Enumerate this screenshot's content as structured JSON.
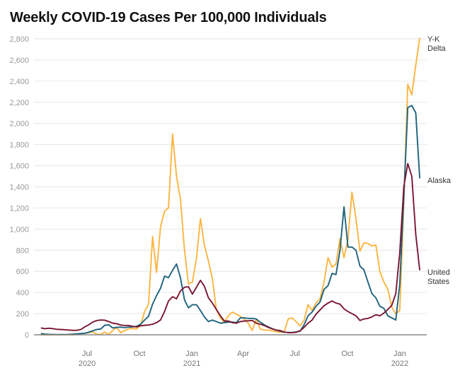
{
  "chart_data": {
    "type": "line",
    "title": "Weekly COVID-19 Cases Per 100,000 Individuals",
    "xlabel": "",
    "ylabel": "",
    "ylim": [
      0,
      2800
    ],
    "yticks": [
      0,
      200,
      400,
      600,
      800,
      1000,
      1200,
      1400,
      1600,
      1800,
      2000,
      2200,
      2400,
      2600,
      2800
    ],
    "ytick_labels": [
      "0",
      "200",
      "400",
      "600",
      "800",
      "1,000",
      "1,200",
      "1,400",
      "1,600",
      "1,800",
      "2,000",
      "2,200",
      "2,400",
      "2,600",
      "2,800"
    ],
    "xticks": [
      {
        "date": "2020-07-01",
        "label": "Jul",
        "year": "2020"
      },
      {
        "date": "2020-10-01",
        "label": "Oct",
        "year": ""
      },
      {
        "date": "2021-01-01",
        "label": "Jan",
        "year": "2021"
      },
      {
        "date": "2021-04-01",
        "label": "Apr",
        "year": ""
      },
      {
        "date": "2021-07-01",
        "label": "Jul",
        "year": ""
      },
      {
        "date": "2021-10-01",
        "label": "Oct",
        "year": ""
      },
      {
        "date": "2022-01-01",
        "label": "Jan",
        "year": "2022"
      }
    ],
    "grid": true,
    "legend": "direct labels at right end of lines",
    "x": [
      "2020-04-11",
      "2020-04-18",
      "2020-04-25",
      "2020-05-02",
      "2020-05-09",
      "2020-05-16",
      "2020-05-23",
      "2020-05-30",
      "2020-06-06",
      "2020-06-13",
      "2020-06-20",
      "2020-06-27",
      "2020-07-04",
      "2020-07-11",
      "2020-07-18",
      "2020-07-25",
      "2020-08-01",
      "2020-08-08",
      "2020-08-15",
      "2020-08-22",
      "2020-08-29",
      "2020-09-05",
      "2020-09-12",
      "2020-09-19",
      "2020-09-26",
      "2020-10-03",
      "2020-10-10",
      "2020-10-17",
      "2020-10-24",
      "2020-10-31",
      "2020-11-07",
      "2020-11-14",
      "2020-11-21",
      "2020-11-28",
      "2020-12-05",
      "2020-12-12",
      "2020-12-19",
      "2020-12-26",
      "2021-01-02",
      "2021-01-09",
      "2021-01-16",
      "2021-01-23",
      "2021-01-30",
      "2021-02-06",
      "2021-02-13",
      "2021-02-20",
      "2021-02-27",
      "2021-03-06",
      "2021-03-13",
      "2021-03-20",
      "2021-03-27",
      "2021-04-03",
      "2021-04-10",
      "2021-04-17",
      "2021-04-24",
      "2021-05-01",
      "2021-05-08",
      "2021-05-15",
      "2021-05-22",
      "2021-05-29",
      "2021-06-05",
      "2021-06-12",
      "2021-06-19",
      "2021-06-26",
      "2021-07-03",
      "2021-07-10",
      "2021-07-17",
      "2021-07-24",
      "2021-07-31",
      "2021-08-07",
      "2021-08-14",
      "2021-08-21",
      "2021-08-28",
      "2021-09-04",
      "2021-09-11",
      "2021-09-18",
      "2021-09-25",
      "2021-10-02",
      "2021-10-09",
      "2021-10-16",
      "2021-10-23",
      "2021-10-30",
      "2021-11-06",
      "2021-11-13",
      "2021-11-20",
      "2021-11-27",
      "2021-12-04",
      "2021-12-11",
      "2021-12-18",
      "2021-12-25",
      "2022-01-01",
      "2022-01-08",
      "2022-01-15",
      "2022-01-22",
      "2022-01-29",
      "2022-02-05"
    ],
    "series": [
      {
        "name": "Y-K Delta",
        "label_lines": [
          "Y-K",
          "Delta"
        ],
        "color": "#FDB441",
        "values": [
          0,
          0,
          0,
          0,
          0,
          0,
          0,
          0,
          0,
          5,
          10,
          15,
          20,
          28,
          5,
          5,
          25,
          5,
          40,
          70,
          20,
          40,
          55,
          60,
          55,
          90,
          220,
          290,
          930,
          590,
          1020,
          1170,
          1200,
          1900,
          1500,
          1280,
          800,
          480,
          500,
          720,
          1100,
          850,
          700,
          530,
          240,
          160,
          120,
          180,
          215,
          195,
          175,
          150,
          110,
          40,
          150,
          55,
          45,
          45,
          38,
          30,
          25,
          25,
          150,
          160,
          125,
          85,
          140,
          285,
          230,
          300,
          340,
          500,
          730,
          640,
          670,
          910,
          730,
          900,
          1350,
          1100,
          790,
          870,
          865,
          840,
          850,
          600,
          500,
          430,
          260,
          200,
          230,
          1250,
          2370,
          2270,
          2550,
          2810
        ]
      },
      {
        "name": "Alaska",
        "label_lines": [
          "Alaska"
        ],
        "color": "#1E627D",
        "values": [
          12,
          6,
          4,
          3,
          2,
          3,
          2,
          4,
          6,
          9,
          12,
          15,
          25,
          38,
          50,
          55,
          90,
          95,
          65,
          70,
          72,
          68,
          72,
          75,
          80,
          100,
          140,
          175,
          290,
          370,
          440,
          555,
          540,
          610,
          670,
          540,
          330,
          255,
          285,
          285,
          230,
          170,
          125,
          140,
          125,
          110,
          115,
          120,
          120,
          115,
          160,
          160,
          155,
          155,
          150,
          120,
          95,
          75,
          58,
          45,
          35,
          25,
          22,
          22,
          27,
          34,
          95,
          180,
          215,
          270,
          310,
          430,
          465,
          580,
          570,
          800,
          1210,
          830,
          830,
          800,
          650,
          615,
          500,
          390,
          350,
          270,
          250,
          180,
          160,
          140,
          480,
          1300,
          2150,
          2170,
          2100,
          1480
        ]
      },
      {
        "name": "United States",
        "label_lines": [
          "United",
          "States"
        ],
        "color": "#7A1631",
        "values": [
          65,
          58,
          62,
          58,
          52,
          50,
          48,
          45,
          42,
          42,
          50,
          75,
          95,
          120,
          135,
          140,
          138,
          125,
          110,
          105,
          92,
          88,
          88,
          80,
          75,
          85,
          90,
          92,
          100,
          115,
          140,
          220,
          320,
          360,
          340,
          415,
          450,
          455,
          385,
          450,
          515,
          460,
          350,
          300,
          240,
          180,
          130,
          130,
          115,
          110,
          125,
          130,
          132,
          135,
          110,
          100,
          88,
          70,
          57,
          45,
          40,
          27,
          20,
          21,
          24,
          38,
          70,
          110,
          140,
          195,
          235,
          275,
          300,
          320,
          300,
          290,
          245,
          220,
          200,
          180,
          135,
          150,
          155,
          170,
          190,
          180,
          205,
          240,
          280,
          390,
          780,
          1400,
          1620,
          1500,
          950,
          610
        ]
      }
    ]
  }
}
